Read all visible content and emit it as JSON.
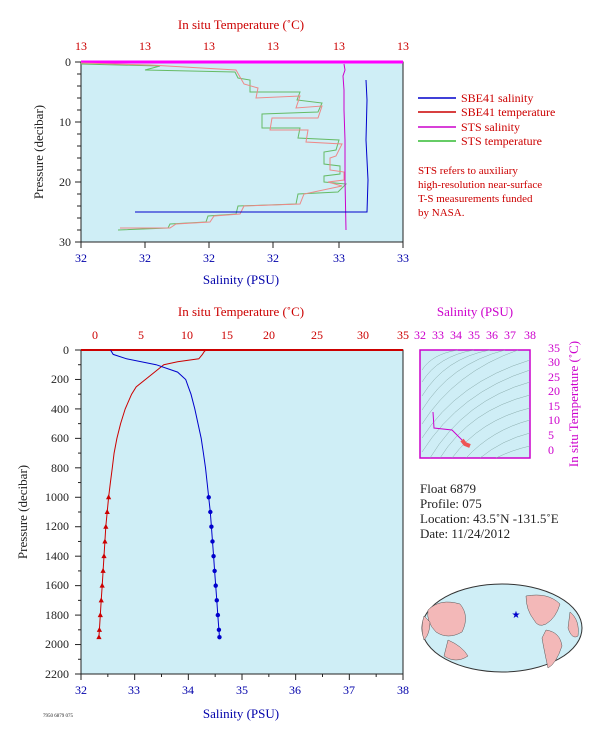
{
  "top_chart": {
    "top_axis_label": "In situ Temperature (˚C)",
    "bottom_axis_label": "Salinity (PSU)",
    "y_axis_label": "Pressure (decibar)",
    "top_ticks": [
      "13",
      "13",
      "13",
      "13",
      "13",
      "13"
    ],
    "bottom_ticks": [
      "32",
      "32",
      "32",
      "32",
      "33",
      "33"
    ],
    "y_ticks": [
      "0",
      "10",
      "20",
      "30"
    ],
    "legend": [
      {
        "label": "SBE41 salinity",
        "color": "#0000cc"
      },
      {
        "label": "SBE41 temperature",
        "color": "#cc0000"
      },
      {
        "label": "STS salinity",
        "color": "#cc00cc"
      },
      {
        "label": "STS temperature",
        "color": "#33bb33"
      }
    ],
    "note_lines": [
      "STS refers to auxiliary",
      "high-resolution near-surface",
      "T-S measurements funded",
      "by NASA."
    ]
  },
  "main_chart": {
    "top_axis_label": "In situ Temperature (˚C)",
    "bottom_axis_label": "Salinity (PSU)",
    "y_axis_label": "Pressure (decibar)",
    "top_ticks": [
      "0",
      "5",
      "10",
      "15",
      "20",
      "25",
      "30",
      "35"
    ],
    "bottom_ticks": [
      "32",
      "33",
      "34",
      "35",
      "36",
      "37",
      "38"
    ],
    "y_ticks": [
      "0",
      "200",
      "400",
      "600",
      "800",
      "1000",
      "1200",
      "1400",
      "1600",
      "1800",
      "2000",
      "2200"
    ]
  },
  "ts_chart": {
    "top_axis_label": "Salinity (PSU)",
    "right_axis_label": "In situ Temperature (˚C)",
    "top_ticks": [
      "32",
      "33",
      "34",
      "35",
      "36",
      "37",
      "38"
    ],
    "right_ticks": [
      "0",
      "5",
      "10",
      "15",
      "20",
      "25",
      "30",
      "35"
    ]
  },
  "float_info": {
    "float": "Float  6879",
    "profile": "Profile:  075",
    "location": "Location:  43.5˚N  -131.5˚E",
    "date": "Date:  11/24/2012"
  },
  "footer_code": "7950 6879 075",
  "chart_data": [
    {
      "type": "line",
      "title": "",
      "ylabel": "Pressure (decibar)",
      "xlabel": "In situ Temperature (˚C) / Salinity (PSU)",
      "ylim": [
        0,
        2200
      ],
      "temperature_xlim": [
        0,
        35
      ],
      "salinity_xlim": [
        32,
        38
      ],
      "series": [
        {
          "axis": "temperature",
          "color": "#cc0000",
          "pressure": [
            0,
            10,
            30,
            60,
            80,
            100,
            150,
            200,
            250,
            300,
            400,
            500,
            600,
            700,
            800,
            900,
            1000,
            1100,
            1200,
            1300,
            1400,
            1500,
            1600,
            1700,
            1800,
            1900,
            1950
          ],
          "values": [
            13.6,
            13.4,
            13.2,
            12.8,
            10.5,
            9.0,
            8.0,
            7.0,
            6.0,
            5.5,
            4.8,
            4.3,
            3.9,
            3.6,
            3.4,
            3.2,
            3.0,
            2.85,
            2.7,
            2.6,
            2.5,
            2.4,
            2.3,
            2.2,
            2.1,
            2.0,
            1.95
          ]
        },
        {
          "axis": "salinity",
          "color": "#0000cc",
          "pressure": [
            0,
            30,
            60,
            100,
            150,
            200,
            250,
            300,
            400,
            500,
            600,
            700,
            800,
            900,
            1000,
            1100,
            1200,
            1300,
            1400,
            1500,
            1600,
            1700,
            1800,
            1900,
            1950
          ],
          "values": [
            32.55,
            32.6,
            32.85,
            33.4,
            33.8,
            33.95,
            34.0,
            34.05,
            34.12,
            34.18,
            34.24,
            34.28,
            34.32,
            34.35,
            34.38,
            34.41,
            34.43,
            34.45,
            34.47,
            34.49,
            34.51,
            34.53,
            34.55,
            34.57,
            34.58
          ]
        }
      ]
    }
  ]
}
